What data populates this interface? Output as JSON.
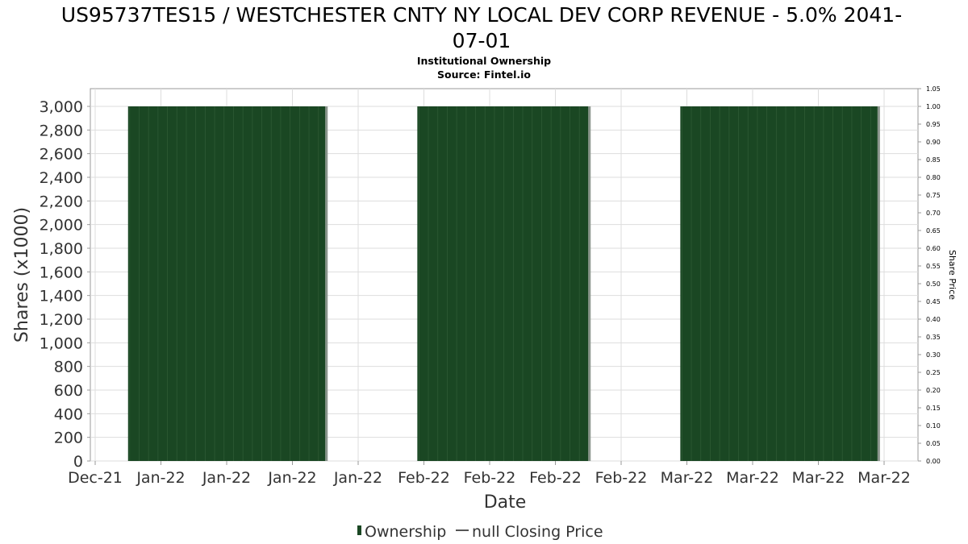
{
  "chart_data": {
    "type": "bar",
    "title": "US95737TES15 / WESTCHESTER CNTY NY LOCAL DEV CORP REVENUE - 5.0% 2041-07-01",
    "title_lines": [
      "US95737TES15 / WESTCHESTER CNTY NY LOCAL DEV CORP REVENUE - 5.0% 2041-",
      "07-01"
    ],
    "subtitle": "Institutional Ownership",
    "source": "Source: Fintel.io",
    "xlabel": "Date",
    "ylabel": "Shares (x1000)",
    "y2label": "Share Price",
    "x_ticks": [
      "Dec-21",
      "Jan-22",
      "Jan-22",
      "Jan-22",
      "Jan-22",
      "Feb-22",
      "Feb-22",
      "Feb-22",
      "Feb-22",
      "Mar-22",
      "Mar-22",
      "Mar-22",
      "Mar-22"
    ],
    "y_ticks": [
      "0",
      "200",
      "400",
      "600",
      "800",
      "1,000",
      "1,200",
      "1,400",
      "1,600",
      "1,800",
      "2,000",
      "2,200",
      "2,400",
      "2,600",
      "2,800",
      "3,000"
    ],
    "y2_ticks": [
      "0.00",
      "0.05",
      "0.10",
      "0.15",
      "0.20",
      "0.25",
      "0.30",
      "0.35",
      "0.40",
      "0.45",
      "0.50",
      "0.55",
      "0.60",
      "0.65",
      "0.70",
      "0.75",
      "0.80",
      "0.85",
      "0.90",
      "0.95",
      "1.00",
      "1.05"
    ],
    "ylim": [
      0,
      3150
    ],
    "y2lim": [
      0,
      1.05
    ],
    "x_tick_index_range": [
      0,
      12
    ],
    "series": [
      {
        "name": "Ownership",
        "color": "#1a4723",
        "segments": [
          {
            "start": 0.5,
            "end": 3.5,
            "value": 3000
          },
          {
            "start": 4.9,
            "end": 7.5,
            "value": 3000
          },
          {
            "start": 8.9,
            "end": 11.9,
            "value": 3000
          }
        ]
      }
    ],
    "legend": [
      {
        "label": "Ownership",
        "marker": "bar",
        "color": "#1a4723"
      },
      {
        "label": "null Closing Price",
        "marker": "line",
        "color": "#555555"
      }
    ],
    "legend_position": "bottom",
    "grid": true
  }
}
